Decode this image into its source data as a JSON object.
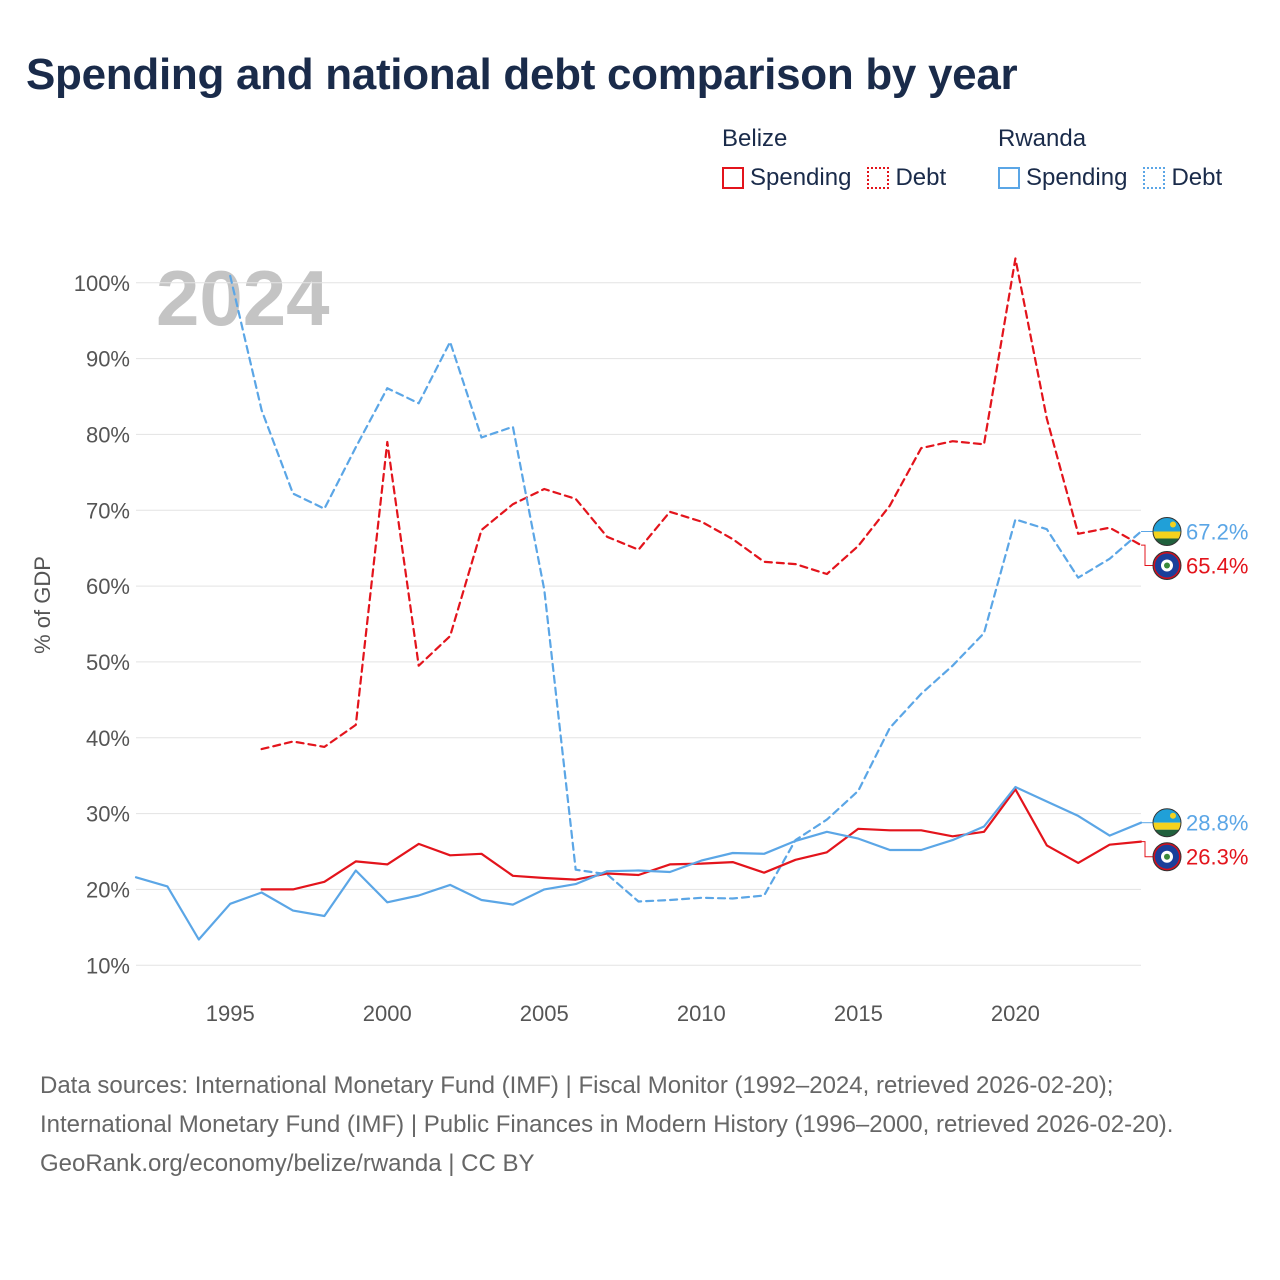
{
  "title": "Spending and national debt comparison by year",
  "legend": {
    "belize": {
      "name": "Belize",
      "spending": "Spending",
      "debt": "Debt"
    },
    "rwanda": {
      "name": "Rwanda",
      "spending": "Spending",
      "debt": "Debt"
    }
  },
  "colors": {
    "belize": "#e3141c",
    "rwanda": "#5ba6e6",
    "grid": "#e3e3e3",
    "year": "#c4c4c4"
  },
  "footer": {
    "sources": "Data sources: International Monetary Fund (IMF) | Fiscal Monitor (1992–2024, retrieved 2026-02-20); International Monetary Fund (IMF) | Public Finances in Modern History (1996–2000, retrieved 2026-02-20).",
    "credit": "GeoRank.org/economy/belize/rwanda | CC BY"
  },
  "chart_data": {
    "type": "line",
    "year_label": "2024",
    "ylabel": "% of GDP",
    "xlim": [
      1992,
      2024
    ],
    "ylim": [
      7,
      103
    ],
    "x_ticks": [
      1995,
      2000,
      2005,
      2010,
      2015,
      2020
    ],
    "y_ticks": [
      10,
      20,
      30,
      40,
      50,
      60,
      70,
      80,
      90,
      100
    ],
    "y_tick_labels": [
      "10%",
      "20%",
      "30%",
      "40%",
      "50%",
      "60%",
      "70%",
      "80%",
      "90%",
      "100%"
    ],
    "series": [
      {
        "name": "Belize Debt",
        "country": "belize",
        "style": "dashed",
        "x": [
          1996,
          1997,
          1998,
          1999,
          2000,
          2001,
          2002,
          2003,
          2004,
          2005,
          2006,
          2007,
          2008,
          2009,
          2010,
          2011,
          2012,
          2013,
          2014,
          2015,
          2016,
          2017,
          2018,
          2019,
          2020,
          2021,
          2022,
          2023,
          2024
        ],
        "values": [
          38.5,
          39.5,
          38.8,
          41.7,
          79.0,
          49.5,
          53.4,
          67.4,
          70.8,
          72.8,
          71.5,
          66.5,
          64.8,
          69.8,
          68.5,
          66.2,
          63.2,
          62.9,
          61.6,
          65.3,
          70.6,
          78.2,
          79.1,
          78.7,
          103.2,
          82.1,
          66.9,
          67.7,
          65.4
        ],
        "end_label": "65.4%"
      },
      {
        "name": "Rwanda Debt",
        "country": "rwanda",
        "style": "dashed",
        "x": [
          1995,
          1996,
          1997,
          1998,
          1999,
          2000,
          2001,
          2002,
          2003,
          2004,
          2005,
          2006,
          2007,
          2008,
          2009,
          2010,
          2011,
          2012,
          2013,
          2014,
          2015,
          2016,
          2017,
          2018,
          2019,
          2020,
          2021,
          2022,
          2023,
          2024
        ],
        "values": [
          100.9,
          83.2,
          72.2,
          70.2,
          78.3,
          86.1,
          84.1,
          92.2,
          79.6,
          81.0,
          59.5,
          22.6,
          22.0,
          18.4,
          18.6,
          18.9,
          18.8,
          19.2,
          26.5,
          29.2,
          33.0,
          41.3,
          45.8,
          49.5,
          53.8,
          68.8,
          67.5,
          61.1,
          63.6,
          67.2
        ],
        "end_label": "67.2%"
      },
      {
        "name": "Belize Spending",
        "country": "belize",
        "style": "solid",
        "x": [
          1996,
          1997,
          1998,
          1999,
          2000,
          2001,
          2002,
          2003,
          2004,
          2005,
          2006,
          2007,
          2008,
          2009,
          2010,
          2011,
          2012,
          2013,
          2014,
          2015,
          2016,
          2017,
          2018,
          2019,
          2020,
          2021,
          2022,
          2023,
          2024
        ],
        "values": [
          20.0,
          20.0,
          21.0,
          23.7,
          23.3,
          26.0,
          24.5,
          24.7,
          21.8,
          21.5,
          21.3,
          22.1,
          21.9,
          23.3,
          23.4,
          23.6,
          22.2,
          23.9,
          24.9,
          28.0,
          27.8,
          27.8,
          27.0,
          27.6,
          33.2,
          25.8,
          23.5,
          25.9,
          26.3
        ],
        "end_label": "26.3%"
      },
      {
        "name": "Rwanda Spending",
        "country": "rwanda",
        "style": "solid",
        "x": [
          1992,
          1993,
          1994,
          1995,
          1996,
          1997,
          1998,
          1999,
          2000,
          2001,
          2002,
          2003,
          2004,
          2005,
          2006,
          2007,
          2008,
          2009,
          2010,
          2011,
          2012,
          2013,
          2014,
          2015,
          2016,
          2017,
          2018,
          2019,
          2020,
          2021,
          2022,
          2023,
          2024
        ],
        "values": [
          21.6,
          20.4,
          13.4,
          18.1,
          19.6,
          17.2,
          16.5,
          22.5,
          18.3,
          19.2,
          20.6,
          18.6,
          18.0,
          20.0,
          20.7,
          22.4,
          22.5,
          22.3,
          23.8,
          24.8,
          24.7,
          26.4,
          27.6,
          26.7,
          25.2,
          25.2,
          26.5,
          28.3,
          33.5,
          31.6,
          29.7,
          27.1,
          28.8
        ],
        "end_label": "28.8%"
      }
    ]
  }
}
